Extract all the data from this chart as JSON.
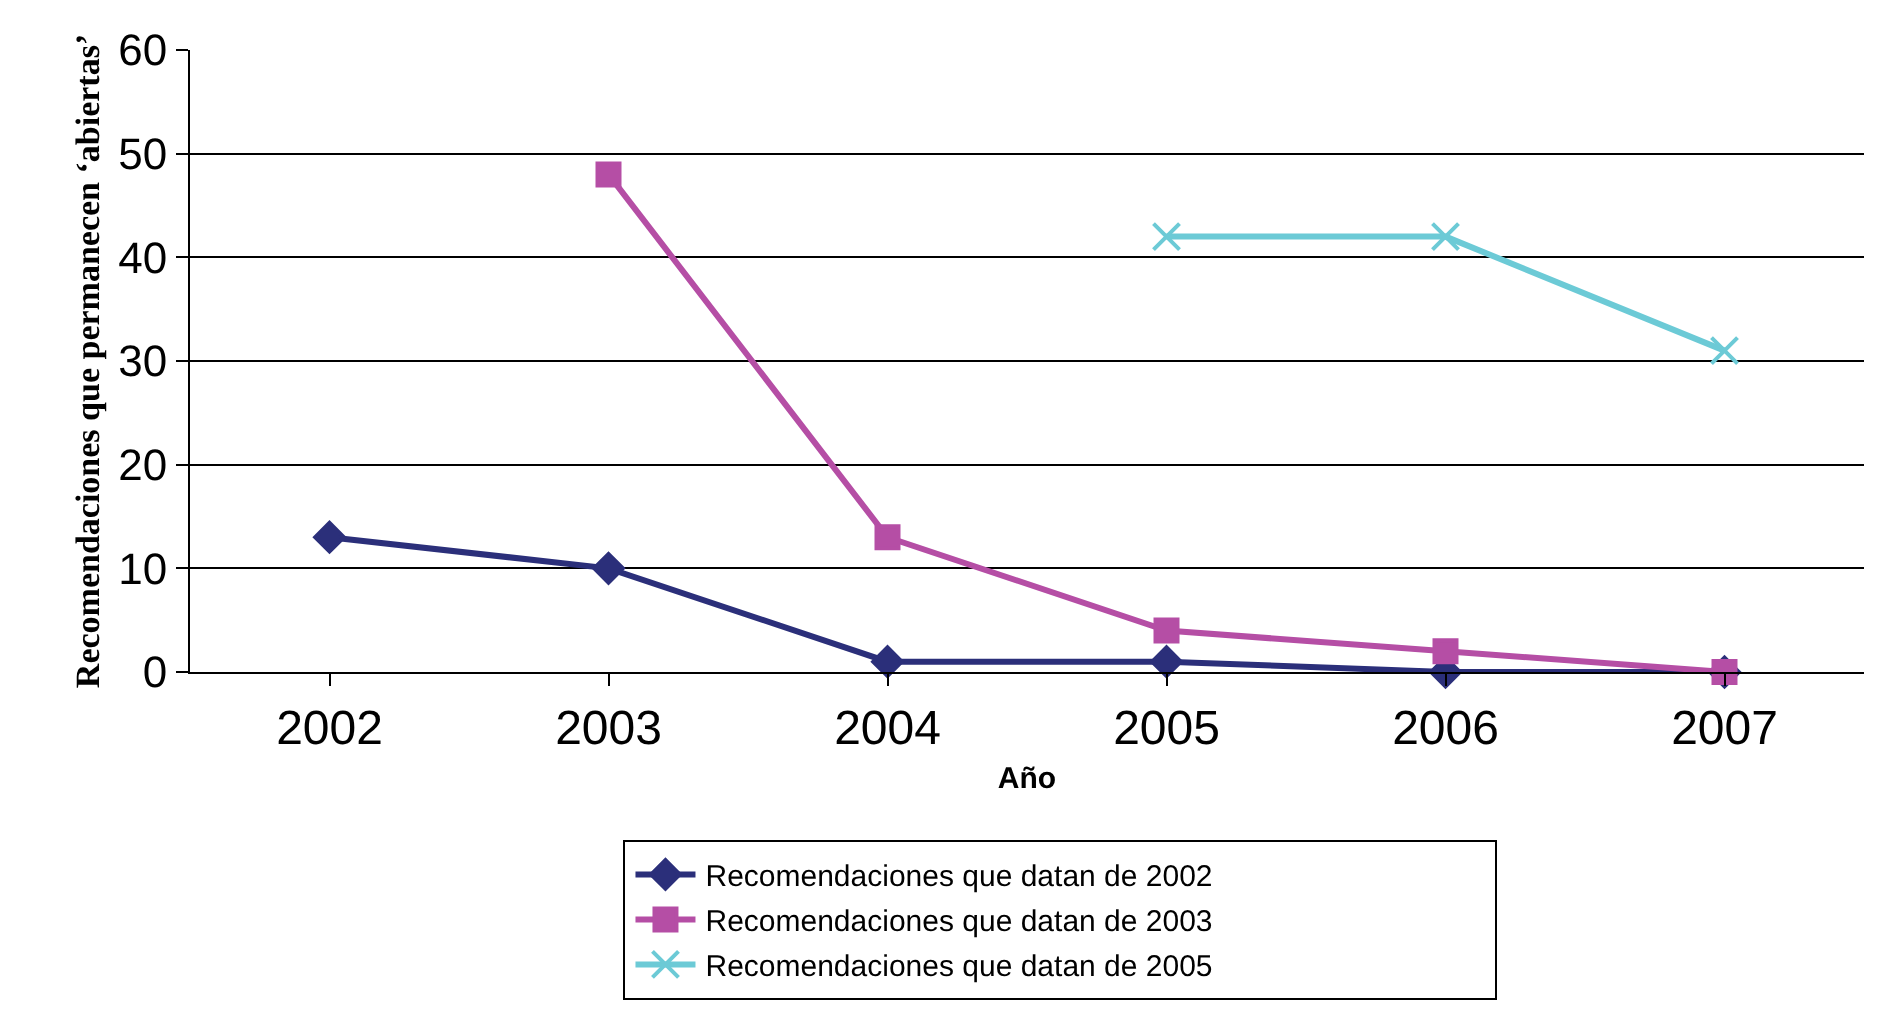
{
  "chart_data": {
    "type": "line",
    "xlabel": "Año",
    "ylabel": "Recomendaciones que permanecen ‘abiertas’",
    "categories": [
      "2002",
      "2003",
      "2004",
      "2005",
      "2006",
      "2007"
    ],
    "series": [
      {
        "name": "Recomendaciones que datan de 2002",
        "color": "#2b2f7a",
        "marker": "diamond",
        "values": [
          13,
          10,
          1,
          1,
          0,
          0
        ]
      },
      {
        "name": "Recomendaciones que datan de 2003",
        "color": "#b54ea5",
        "marker": "square",
        "values": [
          null,
          48,
          13,
          4,
          2,
          0
        ]
      },
      {
        "name": "Recomendaciones que datan de 2005",
        "color": "#6ccad6",
        "marker": "cross",
        "values": [
          null,
          null,
          null,
          42,
          42,
          31
        ]
      }
    ],
    "ylim": [
      0,
      60
    ],
    "yticks": [
      0,
      10,
      20,
      30,
      40,
      50,
      60
    ],
    "grid": "y",
    "legend": "bottom",
    "line_style": "solid"
  }
}
